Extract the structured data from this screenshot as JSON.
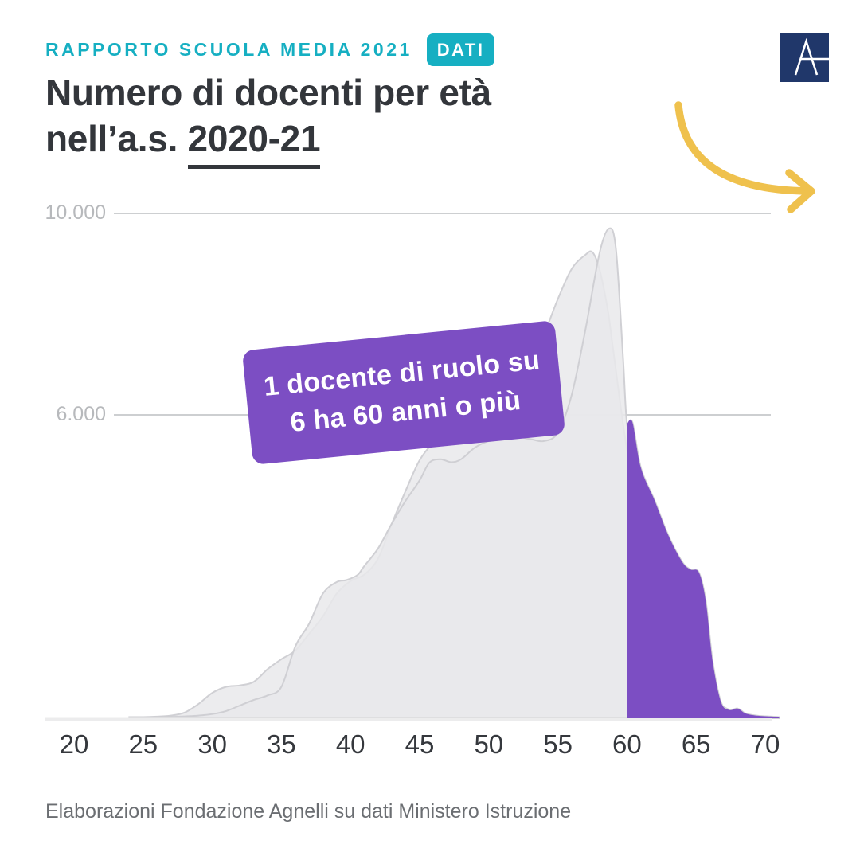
{
  "header": {
    "kicker": "RAPPORTO SCUOLA MEDIA 2021",
    "badge": "DATI"
  },
  "logo": {
    "letter": "A"
  },
  "title": {
    "line1": "Numero di docenti per età",
    "line2_prefix": "nell’a.s. ",
    "line2_underline": "2020-21"
  },
  "callout": {
    "line1": "1 docente di ruolo su",
    "line2": "6 ha 60 anni o più"
  },
  "footer": {
    "text": "Elaborazioni Fondazione Agnelli su dati Ministero Istruzione"
  },
  "colors": {
    "teal": "#16AFC2",
    "purple": "#7C4EC3",
    "yellow": "#EFC14D",
    "navy": "#20376A",
    "title_dark": "#33363B",
    "gridline": "#CDCFD1",
    "y_label": "#B7B9BC",
    "x_label": "#35383D",
    "footer_gray": "#6B6E72",
    "area_fill": "rgba(233,233,235,0.85)",
    "area_stroke": "rgba(205,206,210,0.95)",
    "baseline": "#ECECED"
  },
  "chart_data": {
    "type": "area",
    "title": "Numero di docenti per età nell’a.s. 2020-21",
    "xlabel": "",
    "ylabel": "",
    "xlim": [
      20,
      71
    ],
    "ylim": [
      0,
      10500
    ],
    "x_ticks": [
      20,
      25,
      30,
      35,
      40,
      45,
      50,
      55,
      60,
      65,
      70
    ],
    "gridlines": [
      {
        "value": 10000,
        "label": "10.000"
      },
      {
        "value": 6000,
        "label": "6.000"
      }
    ],
    "annotation": "1 docente di ruolo su 6 ha 60 anni o più",
    "highlight": {
      "from_age": 60,
      "label": "60 anni o più",
      "share": "1 su 6"
    },
    "series": [
      {
        "name": "background-distribution",
        "points": [
          [
            24,
            0
          ],
          [
            25,
            0
          ],
          [
            26,
            10
          ],
          [
            27,
            30
          ],
          [
            28,
            90
          ],
          [
            29,
            260
          ],
          [
            30,
            480
          ],
          [
            31,
            600
          ],
          [
            32,
            630
          ],
          [
            33,
            700
          ],
          [
            34,
            950
          ],
          [
            35,
            1150
          ],
          [
            36,
            1320
          ],
          [
            37,
            1650
          ],
          [
            38,
            2000
          ],
          [
            39,
            2450
          ],
          [
            40,
            2700
          ],
          [
            41,
            2830
          ],
          [
            42,
            3150
          ],
          [
            43,
            3850
          ],
          [
            44,
            4500
          ],
          [
            45,
            5100
          ],
          [
            46,
            5450
          ],
          [
            47,
            5650
          ],
          [
            48,
            5750
          ],
          [
            49,
            5850
          ],
          [
            50,
            6050
          ],
          [
            51,
            6300
          ],
          [
            52,
            6650
          ],
          [
            53,
            7050
          ],
          [
            54,
            7600
          ],
          [
            55,
            8300
          ],
          [
            56,
            8900
          ],
          [
            57,
            9180
          ],
          [
            57.5,
            9230
          ],
          [
            58,
            8900
          ],
          [
            58.6,
            8100
          ],
          [
            59,
            7300
          ],
          [
            60,
            5300
          ],
          [
            61,
            4000
          ],
          [
            62,
            2950
          ],
          [
            63,
            2050
          ],
          [
            64,
            1350
          ],
          [
            65,
            820
          ],
          [
            66,
            430
          ],
          [
            67,
            200
          ],
          [
            68,
            90
          ],
          [
            69,
            35
          ],
          [
            70,
            12
          ],
          [
            71,
            0
          ]
        ]
      },
      {
        "name": "docenti-2020-21",
        "points": [
          [
            24,
            0
          ],
          [
            26,
            0
          ],
          [
            27,
            5
          ],
          [
            28,
            15
          ],
          [
            29,
            30
          ],
          [
            30,
            60
          ],
          [
            31,
            120
          ],
          [
            32,
            230
          ],
          [
            33,
            340
          ],
          [
            34,
            430
          ],
          [
            35,
            600
          ],
          [
            36,
            1400
          ],
          [
            37,
            1850
          ],
          [
            38,
            2450
          ],
          [
            39,
            2680
          ],
          [
            39.7,
            2720
          ],
          [
            40.5,
            2820
          ],
          [
            41,
            3000
          ],
          [
            42,
            3350
          ],
          [
            43,
            3850
          ],
          [
            44,
            4300
          ],
          [
            45,
            4700
          ],
          [
            45.7,
            5050
          ],
          [
            46.5,
            5120
          ],
          [
            47.3,
            5060
          ],
          [
            48,
            5120
          ],
          [
            49,
            5350
          ],
          [
            50,
            5480
          ],
          [
            51,
            5520
          ],
          [
            52,
            5560
          ],
          [
            53,
            5520
          ],
          [
            54,
            5480
          ],
          [
            55,
            5650
          ],
          [
            56,
            6400
          ],
          [
            57,
            7700
          ],
          [
            58,
            9200
          ],
          [
            58.7,
            9700
          ],
          [
            59.2,
            9300
          ],
          [
            59.7,
            7200
          ],
          [
            60,
            5820
          ],
          [
            60.4,
            5850
          ],
          [
            61,
            4950
          ],
          [
            62,
            4300
          ],
          [
            63,
            3600
          ],
          [
            64,
            3080
          ],
          [
            64.6,
            2930
          ],
          [
            65.2,
            2870
          ],
          [
            65.7,
            2300
          ],
          [
            66.2,
            1100
          ],
          [
            66.8,
            300
          ],
          [
            67.4,
            140
          ],
          [
            68,
            170
          ],
          [
            68.6,
            70
          ],
          [
            69.5,
            25
          ],
          [
            70.5,
            10
          ],
          [
            71,
            0
          ]
        ]
      }
    ]
  }
}
